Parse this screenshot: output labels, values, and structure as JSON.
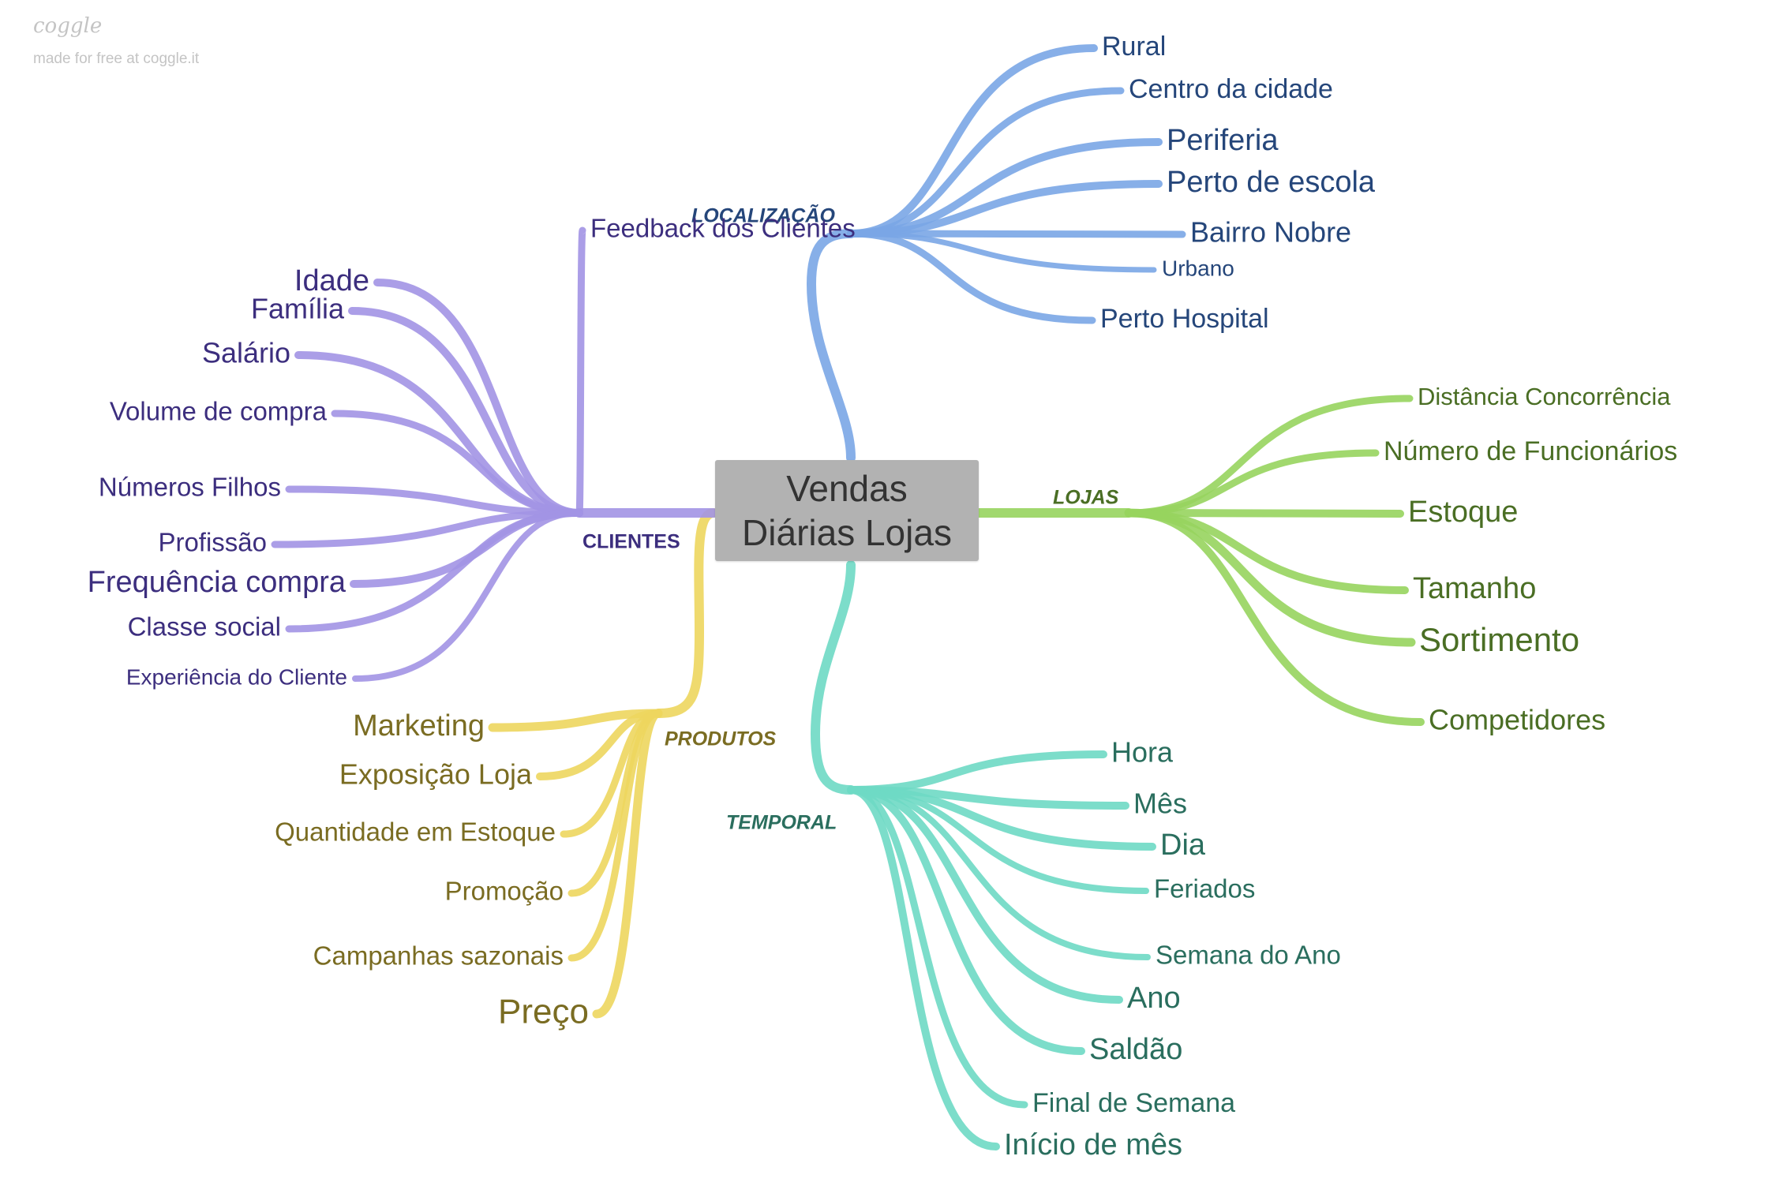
{
  "branding": {
    "logo": "coggle",
    "note": "made for free at coggle.it"
  },
  "center": {
    "line1": "Vendas",
    "line2": "Diárias Lojas",
    "fill": "#b2b2b2",
    "text_color": "#333333"
  },
  "branches": [
    {
      "id": "localizacao",
      "label": "LOCALIZAÇÃO",
      "color": "#7aa6e6",
      "text_color": "#25467a",
      "children": [
        "Rural",
        "Centro da cidade",
        "Periferia",
        "Perto de escola",
        "Bairro Nobre",
        "Urbano",
        "Perto Hospital"
      ]
    },
    {
      "id": "lojas",
      "label": "LOJAS",
      "color": "#97d45e",
      "text_color": "#4a6e24",
      "children": [
        "Distância Concorrência",
        "Número de Funcionários",
        "Estoque",
        "Tamanho",
        "Sortimento",
        "Competidores"
      ]
    },
    {
      "id": "temporal",
      "label": "TEMPORAL",
      "color": "#6ed9c4",
      "text_color": "#2a6e5e",
      "children": [
        "Hora",
        "Mês",
        "Dia",
        "Feriados",
        "Semana do Ano",
        "Ano",
        "Saldão",
        "Final de Semana",
        "Início de mês"
      ]
    },
    {
      "id": "produtos",
      "label": "PRODUTOS",
      "color": "#edd65e",
      "text_color": "#7a6c22",
      "children": [
        "Marketing",
        "Exposição Loja",
        "Quantidade em Estoque",
        "Promoção",
        "Campanhas sazonais",
        "Preço"
      ]
    },
    {
      "id": "clientes",
      "label": "CLIENTES",
      "color": "#a294e4",
      "text_color": "#3c2e7e",
      "children": [
        "Feedback dos Clientes",
        "Idade",
        "Família",
        "Salário",
        "Volume de compra",
        "Números Filhos",
        "Profissão",
        "Frequência compra",
        "Classe social",
        "Experiência do Cliente"
      ]
    }
  ]
}
